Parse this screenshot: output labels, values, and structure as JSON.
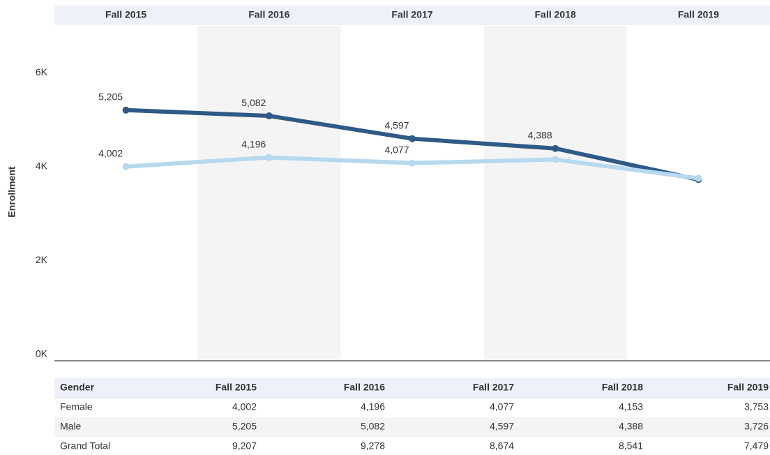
{
  "chart_data": {
    "type": "line",
    "y_label": "Enrollment",
    "categories": [
      "Fall 2015",
      "Fall 2016",
      "Fall 2017",
      "Fall 2018",
      "Fall 2019"
    ],
    "series": [
      {
        "name": "Male",
        "color": "#2e5a87",
        "values": [
          5205,
          5082,
          4597,
          4388,
          3726
        ],
        "value_labels": [
          "5,205",
          "5,082",
          "4,597",
          "4,388",
          null
        ]
      },
      {
        "name": "Female",
        "color": "#b6d9ef",
        "values": [
          4002,
          4196,
          4077,
          4153,
          3753
        ],
        "value_labels": [
          "4,002",
          "4,196",
          "4,077",
          null,
          null
        ]
      }
    ],
    "ylim": [
      0,
      7000
    ],
    "yticks": [
      {
        "value": 0,
        "label": "0K"
      },
      {
        "value": 2000,
        "label": "2K"
      },
      {
        "value": 4000,
        "label": "4K"
      },
      {
        "value": 6000,
        "label": "6K"
      }
    ],
    "band_color": "#f4f4f4",
    "header_color": "#eef1f9"
  },
  "table": {
    "columns": [
      "Gender",
      "Fall 2015",
      "Fall 2016",
      "Fall 2017",
      "Fall 2018",
      "Fall 2019"
    ],
    "rows": [
      [
        "Female",
        "4,002",
        "4,196",
        "4,077",
        "4,153",
        "3,753"
      ],
      [
        "Male",
        "5,205",
        "5,082",
        "4,597",
        "4,388",
        "3,726"
      ],
      [
        "Grand Total",
        "9,207",
        "9,278",
        "8,674",
        "8,541",
        "7,479"
      ]
    ]
  }
}
